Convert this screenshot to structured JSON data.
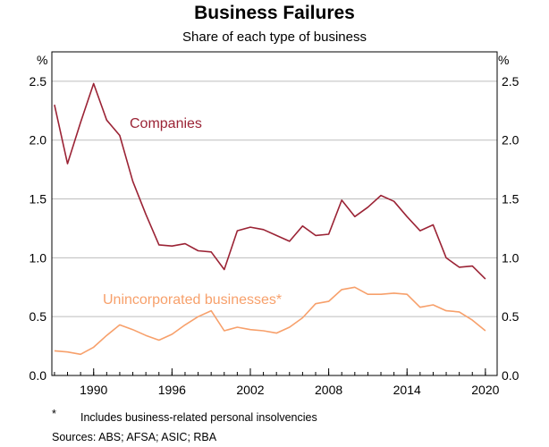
{
  "chart_data": {
    "type": "line",
    "title": "Business Failures",
    "subtitle": "Share of each type of business",
    "y_unit_left": "%",
    "y_unit_right": "%",
    "ylim": [
      0,
      2.75
    ],
    "xlim": [
      1986.8,
      2020.9
    ],
    "y_ticks": [
      0.0,
      0.5,
      1.0,
      1.5,
      2.0,
      2.5
    ],
    "y_tick_labels": [
      "0.0",
      "0.5",
      "1.0",
      "1.5",
      "2.0",
      "2.5"
    ],
    "x_ticks": [
      1990,
      1996,
      2002,
      2008,
      2014,
      2020
    ],
    "x_tick_labels": [
      "1990",
      "1996",
      "2002",
      "2008",
      "2014",
      "2020"
    ],
    "grid": "horizontal",
    "series": [
      {
        "name": "Companies",
        "color": "#9b2335",
        "x": [
          1987,
          1988,
          1989,
          1990,
          1991,
          1992,
          1993,
          1994,
          1995,
          1996,
          1997,
          1998,
          1999,
          2000,
          2001,
          2002,
          2003,
          2004,
          2005,
          2006,
          2007,
          2008,
          2009,
          2010,
          2011,
          2012,
          2013,
          2014,
          2015,
          2016,
          2017,
          2018,
          2019,
          2020
        ],
        "values": [
          2.3,
          1.8,
          2.15,
          2.48,
          2.17,
          2.04,
          1.65,
          1.37,
          1.11,
          1.1,
          1.12,
          1.06,
          1.05,
          0.9,
          1.23,
          1.26,
          1.24,
          1.19,
          1.14,
          1.27,
          1.19,
          1.2,
          1.49,
          1.35,
          1.43,
          1.53,
          1.48,
          1.35,
          1.23,
          1.28,
          1.0,
          0.92,
          0.93,
          0.82
        ]
      },
      {
        "name": "Unincorporated businesses*",
        "color": "#f7a06b",
        "x": [
          1987,
          1988,
          1989,
          1990,
          1991,
          1992,
          1993,
          1994,
          1995,
          1996,
          1997,
          1998,
          1999,
          2000,
          2001,
          2002,
          2003,
          2004,
          2005,
          2006,
          2007,
          2008,
          2009,
          2010,
          2011,
          2012,
          2013,
          2014,
          2015,
          2016,
          2017,
          2018,
          2019,
          2020
        ],
        "values": [
          0.21,
          0.2,
          0.18,
          0.24,
          0.34,
          0.43,
          0.39,
          0.34,
          0.3,
          0.35,
          0.43,
          0.5,
          0.55,
          0.38,
          0.41,
          0.39,
          0.38,
          0.36,
          0.41,
          0.49,
          0.61,
          0.63,
          0.73,
          0.75,
          0.69,
          0.69,
          0.7,
          0.69,
          0.58,
          0.6,
          0.55,
          0.54,
          0.47,
          0.38
        ]
      }
    ]
  },
  "footnotes": {
    "star": "*",
    "star_text": "Includes business-related personal insolvencies",
    "sources": "Sources: ABS; AFSA; ASIC; RBA"
  }
}
